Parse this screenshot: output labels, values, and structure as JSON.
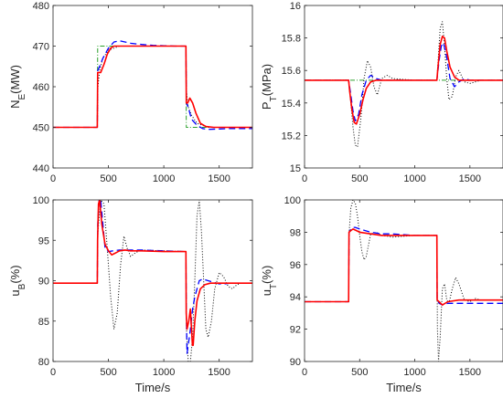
{
  "chart_data": [
    {
      "type": "line",
      "ylabel_main": "N",
      "ylabel_sub": "E",
      "ylabel_unit": "(MW)",
      "xlabel": "",
      "xlim": [
        0,
        1800
      ],
      "ylim": [
        440,
        480
      ],
      "xticks": [
        0,
        500,
        1000,
        1500
      ],
      "yticks": [
        440,
        450,
        460,
        470,
        480
      ],
      "yticklabels": [
        "440",
        "450",
        "460",
        "470",
        "480"
      ],
      "series": [
        {
          "color": "#2ca02c",
          "dash": "5,2,1,2",
          "width": 1,
          "x": [
            0,
            400,
            403,
            1200,
            1203,
            1800
          ],
          "y": [
            450,
            450,
            470,
            470,
            450,
            450
          ]
        },
        {
          "color": "#000000",
          "dash": "1,2",
          "width": 1,
          "x": [
            0,
            400,
            405,
            420,
            450,
            500,
            600,
            700,
            800,
            1000,
            1200,
            1205,
            1220,
            1250,
            1300,
            1400,
            1500,
            1600,
            1800
          ],
          "y": [
            450,
            450,
            460,
            464,
            467,
            469,
            470,
            470,
            470,
            470,
            470,
            459,
            455,
            453,
            451,
            450,
            450,
            450,
            450
          ]
        },
        {
          "color": "#0000ff",
          "dash": "7,4",
          "width": 1.3,
          "x": [
            0,
            400,
            404,
            420,
            450,
            500,
            550,
            600,
            650,
            700,
            800,
            900,
            1000,
            1100,
            1200,
            1204,
            1220,
            1250,
            1300,
            1350,
            1400,
            1500,
            1600,
            1700,
            1800
          ],
          "y": [
            450,
            450,
            464,
            465,
            467,
            469.5,
            471,
            471.3,
            471,
            470.7,
            470.4,
            470.2,
            470.1,
            470,
            470,
            456,
            455,
            452,
            450.5,
            449.7,
            449.5,
            449.6,
            449.7,
            449.7,
            449.7
          ]
        },
        {
          "color": "#ff0000",
          "dash": "",
          "width": 1.6,
          "x": [
            0,
            400,
            403,
            430,
            460,
            490,
            520,
            550,
            600,
            650,
            700,
            800,
            900,
            1000,
            1100,
            1200,
            1203,
            1215,
            1235,
            1260,
            1290,
            1330,
            1380,
            1450,
            1550,
            1650,
            1800
          ],
          "y": [
            450,
            450,
            463.5,
            463.5,
            465.5,
            468,
            469.5,
            470,
            470,
            470,
            470,
            470,
            470,
            470,
            470,
            470,
            456,
            456,
            457.2,
            456,
            453.5,
            451,
            450.2,
            450,
            450,
            450,
            450
          ]
        }
      ]
    },
    {
      "type": "line",
      "ylabel_main": "P",
      "ylabel_sub": "T",
      "ylabel_unit": "(MPa)",
      "xlabel": "",
      "xlim": [
        0,
        1800
      ],
      "ylim": [
        15,
        16
      ],
      "xticks": [
        0,
        500,
        1000,
        1500
      ],
      "yticks": [
        15,
        15.2,
        15.4,
        15.6,
        15.8,
        16
      ],
      "yticklabels": [
        "15",
        "15.2",
        "15.4",
        "15.6",
        "15.8",
        "16"
      ],
      "series": [
        {
          "color": "#2ca02c",
          "dash": "5,2,1,2",
          "width": 1,
          "x": [
            0,
            1800
          ],
          "y": [
            15.54,
            15.54
          ]
        },
        {
          "color": "#000000",
          "dash": "1,2",
          "width": 1,
          "x": [
            0,
            400,
            420,
            440,
            460,
            480,
            510,
            540,
            570,
            600,
            630,
            660,
            700,
            750,
            800,
            1000,
            1200,
            1215,
            1230,
            1250,
            1270,
            1290,
            1310,
            1340,
            1370,
            1400,
            1450,
            1500,
            1600,
            1800
          ],
          "y": [
            15.54,
            15.54,
            15.4,
            15.25,
            15.14,
            15.13,
            15.3,
            15.55,
            15.66,
            15.62,
            15.5,
            15.45,
            15.55,
            15.57,
            15.55,
            15.54,
            15.54,
            15.7,
            15.86,
            15.9,
            15.75,
            15.55,
            15.42,
            15.44,
            15.56,
            15.6,
            15.53,
            15.52,
            15.54,
            15.54
          ]
        },
        {
          "color": "#0000ff",
          "dash": "7,4",
          "width": 1.3,
          "x": [
            0,
            400,
            420,
            440,
            460,
            490,
            520,
            560,
            600,
            650,
            700,
            800,
            1000,
            1200,
            1220,
            1240,
            1260,
            1290,
            1320,
            1360,
            1400,
            1450,
            1500,
            1600,
            1800
          ],
          "y": [
            15.54,
            15.54,
            15.45,
            15.35,
            15.29,
            15.33,
            15.45,
            15.54,
            15.57,
            15.55,
            15.54,
            15.54,
            15.54,
            15.54,
            15.66,
            15.75,
            15.77,
            15.68,
            15.55,
            15.5,
            15.53,
            15.55,
            15.54,
            15.54,
            15.54
          ]
        },
        {
          "color": "#ff0000",
          "dash": "",
          "width": 1.6,
          "x": [
            0,
            400,
            410,
            430,
            450,
            470,
            500,
            530,
            560,
            600,
            650,
            700,
            800,
            1000,
            1200,
            1210,
            1230,
            1250,
            1270,
            1290,
            1320,
            1360,
            1400,
            1450,
            1500,
            1600,
            1800
          ],
          "y": [
            15.54,
            15.54,
            15.47,
            15.36,
            15.28,
            15.27,
            15.33,
            15.42,
            15.49,
            15.53,
            15.54,
            15.54,
            15.54,
            15.54,
            15.54,
            15.62,
            15.76,
            15.81,
            15.8,
            15.72,
            15.62,
            15.56,
            15.54,
            15.54,
            15.54,
            15.54,
            15.54
          ]
        }
      ]
    },
    {
      "type": "line",
      "ylabel_main": "u",
      "ylabel_sub": "B",
      "ylabel_unit": "(%)",
      "xlabel": "Time/s",
      "xlim": [
        0,
        1800
      ],
      "ylim": [
        80,
        100
      ],
      "xticks": [
        0,
        500,
        1000,
        1500
      ],
      "yticks": [
        80,
        85,
        90,
        95,
        100
      ],
      "yticklabels": [
        "80",
        "85",
        "90",
        "95",
        "100"
      ],
      "series": [
        {
          "color": "#000000",
          "dash": "1,2",
          "width": 1,
          "x": [
            0,
            400,
            405,
            430,
            460,
            490,
            520,
            550,
            580,
            610,
            640,
            670,
            700,
            750,
            800,
            1000,
            1200,
            1205,
            1220,
            1240,
            1260,
            1280,
            1300,
            1320,
            1340,
            1360,
            1380,
            1400,
            1430,
            1460,
            1500,
            1540,
            1580,
            1620,
            1660,
            1700,
            1800
          ],
          "y": [
            89.7,
            89.7,
            96,
            100,
            99.5,
            94,
            88,
            84,
            86,
            92,
            95.5,
            94,
            93,
            93.5,
            93.8,
            93.7,
            93.6,
            84,
            80,
            80,
            83,
            90,
            98,
            100,
            96,
            90,
            84,
            83,
            85,
            89,
            91,
            90.5,
            89.3,
            89,
            89.5,
            89.7,
            89.7
          ]
        },
        {
          "color": "#0000ff",
          "dash": "7,4",
          "width": 1.3,
          "x": [
            0,
            400,
            404,
            415,
            430,
            450,
            470,
            500,
            540,
            600,
            700,
            800,
            1000,
            1200,
            1203,
            1210,
            1220,
            1240,
            1260,
            1280,
            1300,
            1320,
            1350,
            1400,
            1450,
            1500,
            1550,
            1600,
            1800
          ],
          "y": [
            89.7,
            89.7,
            97,
            100,
            100,
            97,
            94,
            93.6,
            93.7,
            93.8,
            93.8,
            93.8,
            93.7,
            93.6,
            86,
            81,
            82,
            84,
            86.5,
            88,
            89,
            90,
            90.2,
            90,
            89.8,
            89.6,
            89.6,
            89.7,
            89.7
          ]
        },
        {
          "color": "#ff0000",
          "dash": "",
          "width": 1.6,
          "x": [
            0,
            400,
            402,
            410,
            420,
            440,
            470,
            500,
            530,
            560,
            600,
            650,
            700,
            800,
            1000,
            1200,
            1202,
            1210,
            1225,
            1240,
            1250,
            1258,
            1265,
            1280,
            1300,
            1330,
            1370,
            1420,
            1500,
            1600,
            1800
          ],
          "y": [
            89.7,
            89.7,
            95,
            99.5,
            100,
            97,
            94.5,
            93.7,
            93.2,
            93.4,
            93.7,
            93.8,
            93.7,
            93.7,
            93.6,
            93.6,
            86,
            84,
            85,
            86.5,
            84,
            82,
            82,
            85,
            87.5,
            89,
            89.5,
            89.7,
            89.7,
            89.7,
            89.7
          ]
        }
      ]
    },
    {
      "type": "line",
      "ylabel_main": "u",
      "ylabel_sub": "T",
      "ylabel_unit": "(%)",
      "xlabel": "Time/s",
      "xlim": [
        0,
        1800
      ],
      "ylim": [
        90,
        100
      ],
      "xticks": [
        0,
        500,
        1000,
        1500
      ],
      "yticks": [
        90,
        92,
        94,
        96,
        98,
        100
      ],
      "yticklabels": [
        "90",
        "92",
        "94",
        "96",
        "98",
        "100"
      ],
      "series": [
        {
          "color": "#000000",
          "dash": "1,2",
          "width": 1,
          "x": [
            0,
            400,
            405,
            420,
            440,
            460,
            480,
            500,
            520,
            540,
            560,
            580,
            600,
            650,
            700,
            800,
            1000,
            1200,
            1205,
            1215,
            1230,
            1250,
            1270,
            1290,
            1310,
            1340,
            1370,
            1400,
            1450,
            1500,
            1550,
            1600,
            1800
          ],
          "y": [
            93.7,
            93.7,
            98,
            99.5,
            100,
            99.8,
            99,
            97.8,
            96.8,
            96.3,
            96.5,
            97.2,
            97.9,
            98,
            97.8,
            97.7,
            97.8,
            97.8,
            92,
            90,
            91.5,
            94.5,
            94.8,
            93.8,
            93.6,
            94.5,
            95.2,
            94.8,
            93.8,
            93.7,
            93.9,
            93.8,
            93.8
          ]
        },
        {
          "color": "#0000ff",
          "dash": "7,4",
          "width": 1.3,
          "x": [
            0,
            400,
            404,
            420,
            440,
            460,
            500,
            600,
            700,
            800,
            1000,
            1200,
            1203,
            1220,
            1250,
            1300,
            1400,
            1500,
            1600,
            1800
          ],
          "y": [
            93.7,
            93.7,
            98,
            98.2,
            98.3,
            98.3,
            98.2,
            98,
            97.9,
            97.9,
            97.8,
            97.8,
            93.8,
            93.6,
            93.5,
            93.6,
            93.6,
            93.6,
            93.6,
            93.6
          ]
        },
        {
          "color": "#ff0000",
          "dash": "",
          "width": 1.6,
          "x": [
            0,
            400,
            403,
            420,
            440,
            470,
            500,
            600,
            700,
            800,
            1000,
            1200,
            1203,
            1220,
            1250,
            1300,
            1400,
            1500,
            1600,
            1800
          ],
          "y": [
            93.7,
            93.7,
            98,
            98.1,
            98.2,
            98.1,
            98,
            97.9,
            97.8,
            97.8,
            97.8,
            97.8,
            93.8,
            93.7,
            93.5,
            93.7,
            93.8,
            93.8,
            93.8,
            93.8
          ]
        }
      ]
    }
  ]
}
